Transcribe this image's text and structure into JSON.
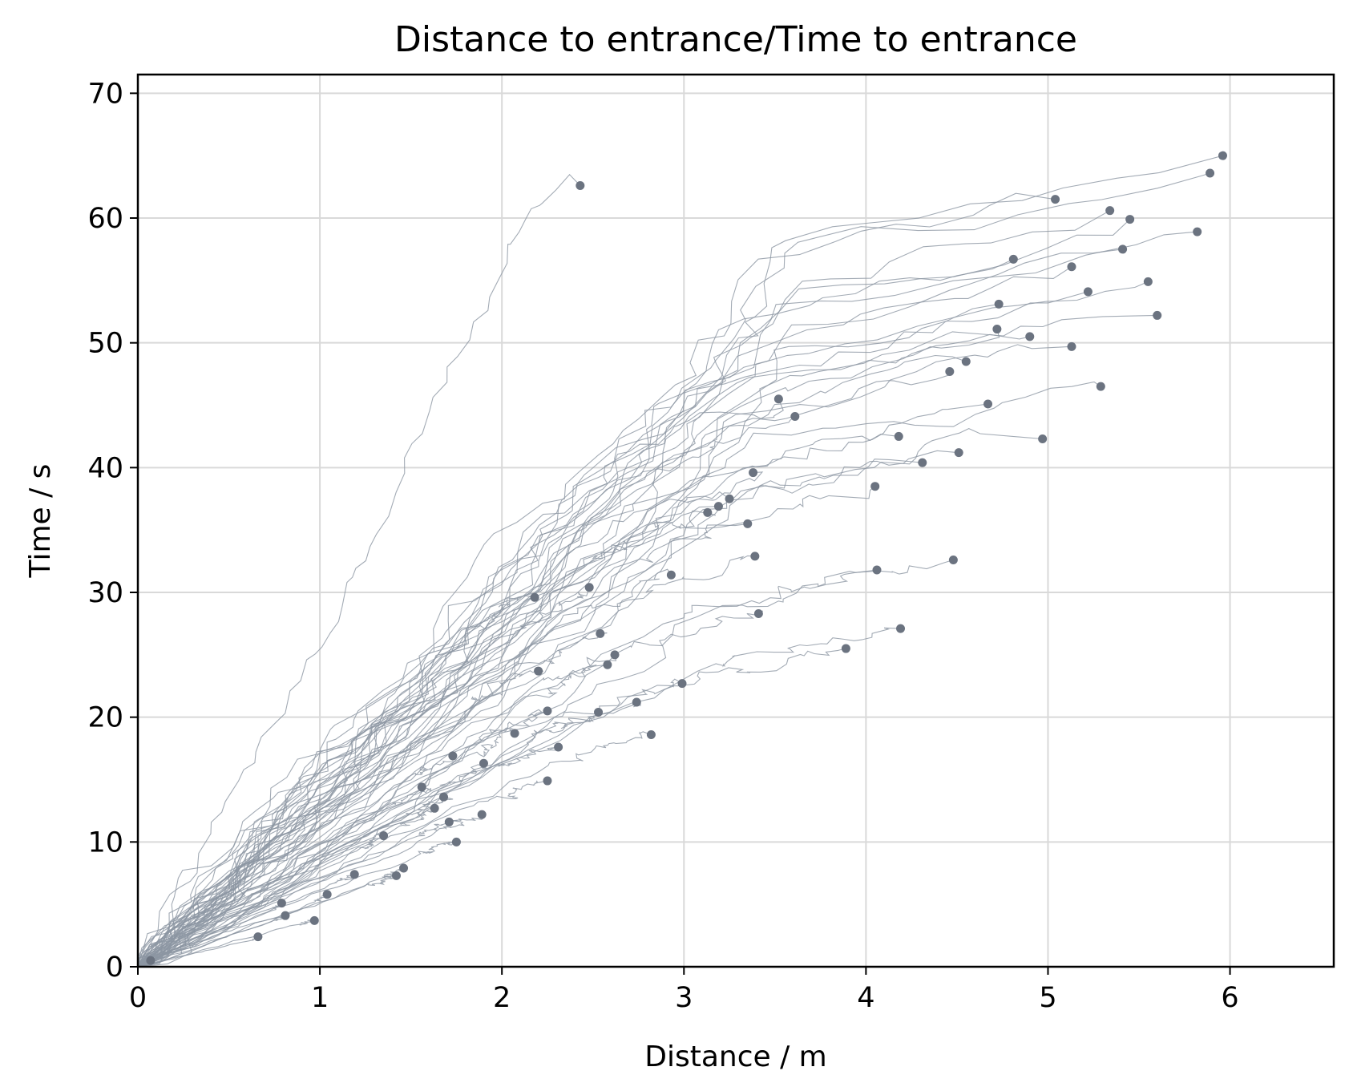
{
  "chart_data": {
    "type": "line",
    "title": "Distance to entrance/Time to entrance",
    "xlabel": "Distance / m",
    "ylabel": "Time / s",
    "xlim": [
      0,
      6.57
    ],
    "ylim": [
      0,
      71.5
    ],
    "xticks": [
      0,
      1,
      2,
      3,
      4,
      5,
      6
    ],
    "yticks": [
      0,
      10,
      20,
      30,
      40,
      50,
      60,
      70
    ],
    "grid": true,
    "legend": "none",
    "line_color": "#8c96a3",
    "marker_color": "#6b7380",
    "endpoints": [
      [
        2.43,
        62.6
      ],
      [
        5.04,
        61.5
      ],
      [
        5.34,
        60.6
      ],
      [
        5.45,
        59.9
      ],
      [
        5.89,
        63.6
      ],
      [
        5.96,
        65.0
      ],
      [
        5.82,
        58.9
      ],
      [
        4.81,
        56.7
      ],
      [
        5.13,
        56.1
      ],
      [
        5.41,
        57.5
      ],
      [
        5.22,
        54.1
      ],
      [
        5.55,
        54.9
      ],
      [
        4.73,
        53.1
      ],
      [
        4.72,
        51.1
      ],
      [
        4.9,
        50.5
      ],
      [
        5.6,
        52.2
      ],
      [
        5.13,
        49.7
      ],
      [
        4.55,
        48.5
      ],
      [
        4.46,
        47.7
      ],
      [
        3.52,
        45.5
      ],
      [
        3.61,
        44.1
      ],
      [
        4.67,
        45.1
      ],
      [
        5.29,
        46.5
      ],
      [
        4.18,
        42.5
      ],
      [
        4.97,
        42.3
      ],
      [
        4.31,
        40.4
      ],
      [
        4.51,
        41.2
      ],
      [
        3.38,
        39.6
      ],
      [
        4.05,
        38.5
      ],
      [
        3.25,
        37.5
      ],
      [
        3.19,
        36.9
      ],
      [
        3.13,
        36.4
      ],
      [
        3.35,
        35.5
      ],
      [
        3.39,
        32.9
      ],
      [
        4.48,
        32.6
      ],
      [
        4.06,
        31.8
      ],
      [
        2.93,
        31.4
      ],
      [
        2.48,
        30.4
      ],
      [
        2.18,
        29.6
      ],
      [
        3.41,
        28.3
      ],
      [
        4.19,
        27.1
      ],
      [
        2.54,
        26.7
      ],
      [
        2.62,
        25.0
      ],
      [
        3.89,
        25.5
      ],
      [
        2.58,
        24.2
      ],
      [
        2.2,
        23.7
      ],
      [
        2.99,
        22.7
      ],
      [
        2.74,
        21.2
      ],
      [
        2.25,
        20.5
      ],
      [
        2.53,
        20.4
      ],
      [
        2.07,
        18.7
      ],
      [
        2.82,
        18.6
      ],
      [
        2.31,
        17.6
      ],
      [
        1.73,
        16.9
      ],
      [
        1.9,
        16.3
      ],
      [
        2.25,
        14.9
      ],
      [
        1.56,
        14.4
      ],
      [
        1.68,
        13.6
      ],
      [
        1.63,
        12.7
      ],
      [
        1.89,
        12.2
      ],
      [
        1.71,
        11.6
      ],
      [
        1.35,
        10.5
      ],
      [
        1.75,
        10.0
      ],
      [
        1.46,
        7.9
      ],
      [
        1.42,
        7.3
      ],
      [
        1.19,
        7.4
      ],
      [
        1.04,
        5.8
      ],
      [
        0.79,
        5.1
      ],
      [
        0.81,
        4.1
      ],
      [
        0.97,
        3.7
      ],
      [
        0.66,
        2.4
      ],
      [
        0.07,
        0.5
      ]
    ]
  }
}
